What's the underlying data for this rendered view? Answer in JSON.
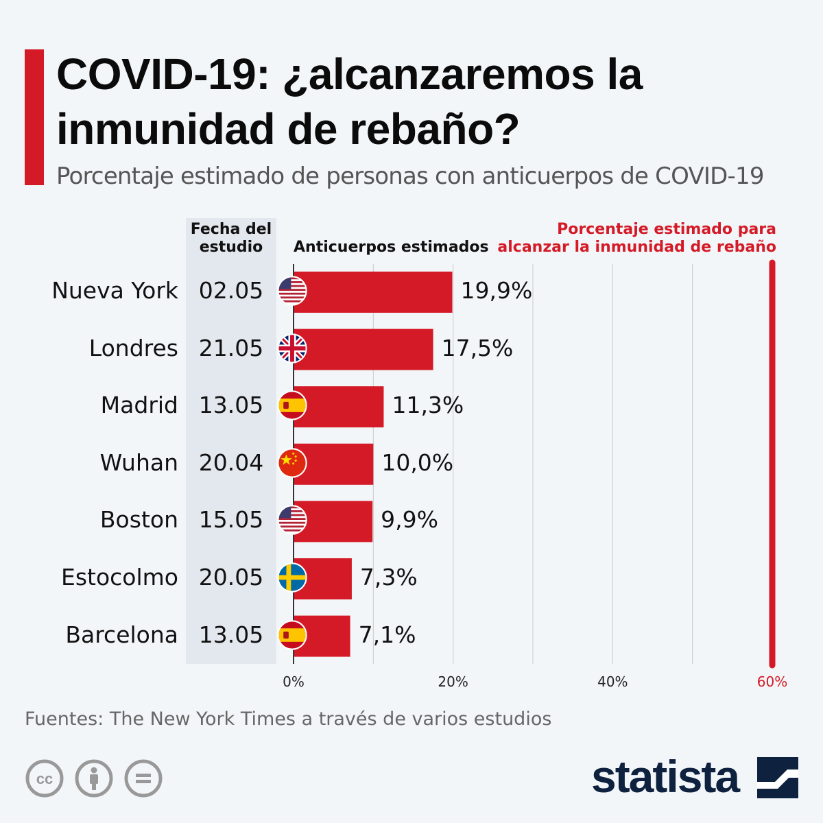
{
  "title": "COVID-19: ¿alcanzaremos la inmunidad de rebaño?",
  "subtitle": "Porcentaje estimado de personas con anticuerpos de COVID-19",
  "headers": {
    "date_line1": "Fecha del",
    "date_line2": "estudio",
    "antibodies": "Anticuerpos estimados",
    "herd_line1": "Porcentaje estimado para",
    "herd_line2": "alcanzar la inmunidad de rebaño"
  },
  "source": "Fuentes: The New York Times a través de varios estudios",
  "brand": "statista",
  "colors": {
    "accent": "#d41a26",
    "brand": "#0e2240",
    "panel": "#e3e8ef",
    "background": "#f3f6f9"
  },
  "chart_data": {
    "type": "bar",
    "orientation": "horizontal",
    "categories": [
      "Nueva York",
      "Londres",
      "Madrid",
      "Wuhan",
      "Boston",
      "Estocolmo",
      "Barcelona"
    ],
    "dates": [
      "02.05",
      "21.05",
      "13.05",
      "20.04",
      "15.05",
      "20.05",
      "13.05"
    ],
    "flags": [
      "us-flag-icon",
      "uk-flag-icon",
      "spain-flag-icon",
      "china-flag-icon",
      "us-flag-icon",
      "sweden-flag-icon",
      "spain-flag-icon"
    ],
    "values": [
      19.9,
      17.5,
      11.3,
      10.0,
      9.9,
      7.3,
      7.1
    ],
    "value_labels": [
      "19,9%",
      "17,5%",
      "11,3%",
      "10,0%",
      "9,9%",
      "7,3%",
      "7,1%"
    ],
    "xlim": [
      0,
      60
    ],
    "x_ticks": [
      0,
      20,
      40,
      60
    ],
    "x_tick_labels": [
      "0%",
      "20%",
      "40%",
      "60%"
    ],
    "threshold": 60,
    "unit": "%"
  }
}
